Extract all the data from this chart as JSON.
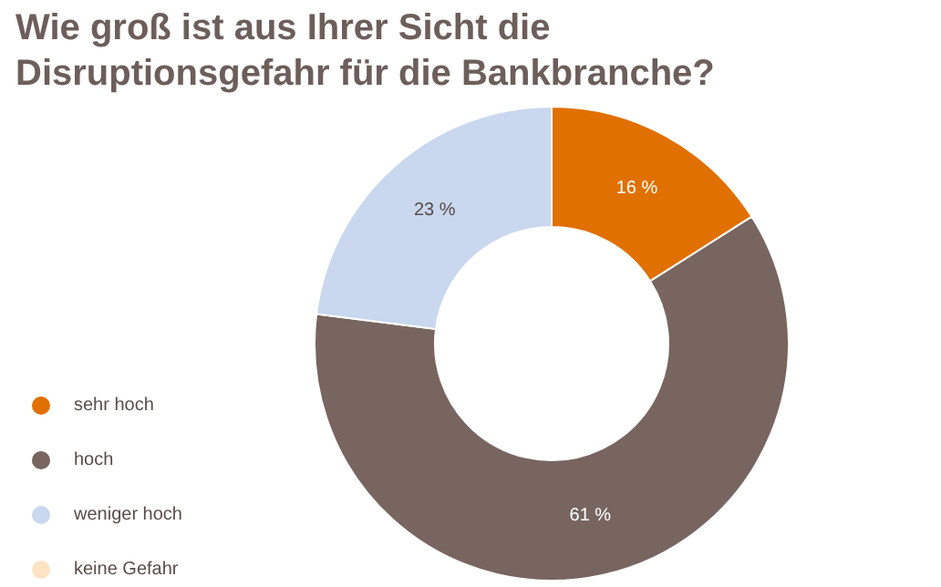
{
  "chart_data": {
    "type": "donut",
    "title": "Wie groß ist aus Ihrer Sicht die\nDisruptionsgefahr für die Bankbranche?",
    "categories": [
      "sehr hoch",
      "hoch",
      "weniger hoch",
      "keine Gefahr"
    ],
    "values": [
      16,
      61,
      23,
      0
    ],
    "colors": [
      "#e07000",
      "#786560",
      "#c9d7ef",
      "#fbe3c4"
    ],
    "value_labels": [
      "16 %",
      "61 %",
      "23 %",
      null
    ],
    "legend": "left"
  }
}
